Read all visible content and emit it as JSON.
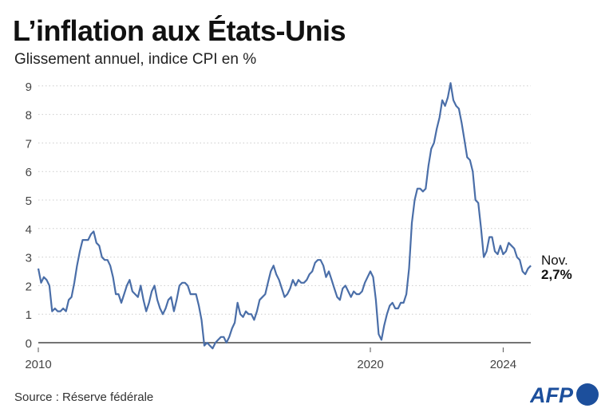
{
  "title": "L’inflation aux États-Unis",
  "subtitle": "Glissement annuel, indice CPI en %",
  "source": "Source : Réserve fédérale",
  "logo_text": "AFP",
  "colors": {
    "line": "#4a6ea8",
    "logo": "#1c4f9c",
    "grid": "#cccccc"
  },
  "chart_data": {
    "type": "line",
    "title": "L’inflation aux États-Unis",
    "subtitle": "Glissement annuel, indice CPI en %",
    "x_start": "2010-01",
    "x_end": "2024-11",
    "x_frequency": "monthly",
    "xticks": [
      "2010",
      "2020",
      "2024"
    ],
    "yticks": [
      0,
      1,
      2,
      3,
      4,
      5,
      6,
      7,
      8,
      9
    ],
    "ylim": [
      0,
      9
    ],
    "grid": "horizontal dotted",
    "annotation": {
      "label": "Nov.",
      "value": "2,7%"
    },
    "values": [
      2.6,
      2.1,
      2.3,
      2.2,
      2.0,
      1.1,
      1.2,
      1.1,
      1.1,
      1.2,
      1.1,
      1.5,
      1.6,
      2.1,
      2.7,
      3.2,
      3.6,
      3.6,
      3.6,
      3.8,
      3.9,
      3.5,
      3.4,
      3.0,
      2.9,
      2.9,
      2.7,
      2.3,
      1.7,
      1.7,
      1.4,
      1.7,
      2.0,
      2.2,
      1.8,
      1.7,
      1.6,
      2.0,
      1.5,
      1.1,
      1.4,
      1.8,
      2.0,
      1.5,
      1.2,
      1.0,
      1.2,
      1.5,
      1.6,
      1.1,
      1.5,
      2.0,
      2.1,
      2.1,
      2.0,
      1.7,
      1.7,
      1.7,
      1.3,
      0.8,
      -0.1,
      0.0,
      -0.1,
      -0.2,
      0.0,
      0.1,
      0.2,
      0.2,
      0.0,
      0.2,
      0.5,
      0.7,
      1.4,
      1.0,
      0.9,
      1.1,
      1.0,
      1.0,
      0.8,
      1.1,
      1.5,
      1.6,
      1.7,
      2.1,
      2.5,
      2.7,
      2.4,
      2.2,
      1.9,
      1.6,
      1.7,
      1.9,
      2.2,
      2.0,
      2.2,
      2.1,
      2.1,
      2.2,
      2.4,
      2.5,
      2.8,
      2.9,
      2.9,
      2.7,
      2.3,
      2.5,
      2.2,
      1.9,
      1.6,
      1.5,
      1.9,
      2.0,
      1.8,
      1.6,
      1.8,
      1.7,
      1.7,
      1.8,
      2.1,
      2.3,
      2.5,
      2.3,
      1.5,
      0.3,
      0.1,
      0.6,
      1.0,
      1.3,
      1.4,
      1.2,
      1.2,
      1.4,
      1.4,
      1.7,
      2.6,
      4.2,
      5.0,
      5.4,
      5.4,
      5.3,
      5.4,
      6.2,
      6.8,
      7.0,
      7.5,
      7.9,
      8.5,
      8.3,
      8.6,
      9.1,
      8.5,
      8.3,
      8.2,
      7.7,
      7.1,
      6.5,
      6.4,
      6.0,
      5.0,
      4.9,
      4.0,
      3.0,
      3.2,
      3.7,
      3.7,
      3.2,
      3.1,
      3.4,
      3.1,
      3.2,
      3.5,
      3.4,
      3.3,
      3.0,
      2.9,
      2.5,
      2.4,
      2.6,
      2.7
    ]
  }
}
